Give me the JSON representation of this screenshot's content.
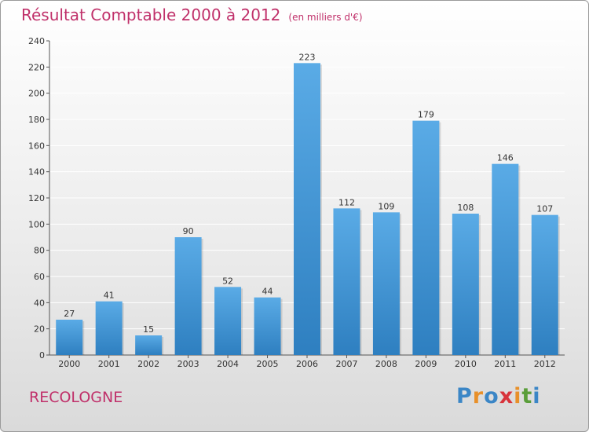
{
  "title": "Résultat Comptable 2000 à 2012",
  "unit_note": "(en milliers d'€)",
  "commune": "RECOLOGNE",
  "logo": {
    "text": "Proxiti",
    "letters": [
      {
        "ch": "P",
        "color": "#3b86c6"
      },
      {
        "ch": "r",
        "color": "#e8902a"
      },
      {
        "ch": "o",
        "color": "#3b86c6"
      },
      {
        "ch": "x",
        "color": "#d8343c"
      },
      {
        "ch": "i",
        "color": "#e8902a"
      },
      {
        "ch": "t",
        "color": "#5a9e3a"
      },
      {
        "ch": "i",
        "color": "#3b86c6"
      }
    ]
  },
  "colors": {
    "title": "#c0306a",
    "bar_top": "#5aabe6",
    "bar_bottom": "#2e7fc0",
    "grid": "#ffffff"
  },
  "chart_data": {
    "type": "bar",
    "title": "Résultat Comptable 2000 à 2012",
    "xlabel": "",
    "ylabel": "",
    "ylim": [
      0,
      240
    ],
    "yticks": [
      0,
      20,
      40,
      60,
      80,
      100,
      120,
      140,
      160,
      180,
      200,
      220,
      240
    ],
    "categories": [
      "2000",
      "2001",
      "2002",
      "2003",
      "2004",
      "2005",
      "2006",
      "2007",
      "2008",
      "2009",
      "2010",
      "2011",
      "2012"
    ],
    "values": [
      27,
      41,
      15,
      90,
      52,
      44,
      223,
      112,
      109,
      179,
      108,
      146,
      107
    ],
    "grid": true,
    "legend": "none"
  }
}
